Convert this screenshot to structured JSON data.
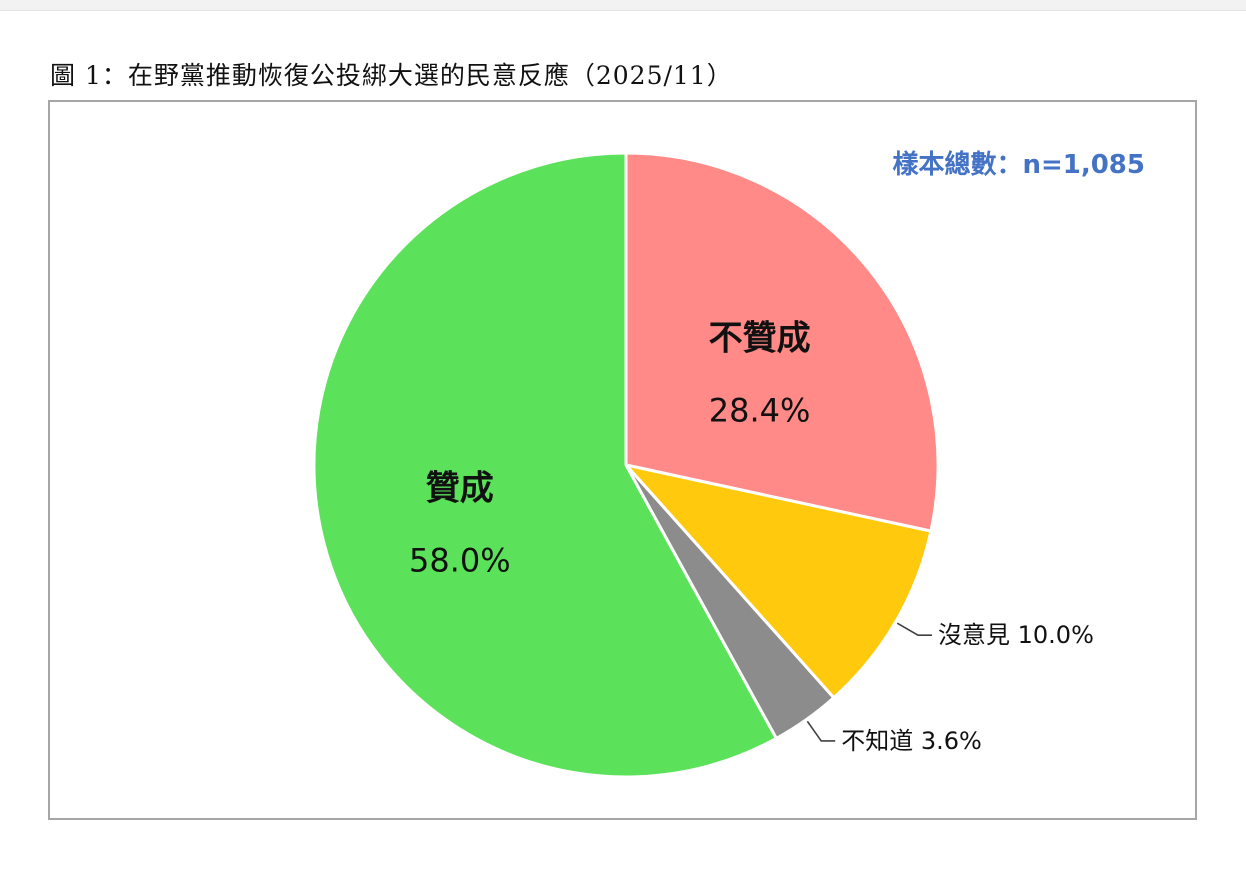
{
  "figure_title": "圖 1：在野黨推動恢復公投綁大選的民意反應（2025/11）",
  "sample_note": "樣本總數：n=1,085",
  "chart_data": {
    "type": "pie",
    "title": "",
    "slices": [
      {
        "label": "不贊成",
        "value": 28.4,
        "value_label": "28.4%",
        "color": "#ff8a87"
      },
      {
        "label": "沒意見",
        "value": 10.0,
        "value_label": "10.0%",
        "color": "#ffc90e"
      },
      {
        "label": "不知道",
        "value": 3.6,
        "value_label": "3.6%",
        "color": "#8c8c8c"
      },
      {
        "label": "贊成",
        "value": 58.0,
        "value_label": "58.0%",
        "color": "#5ce15a"
      }
    ],
    "start_angle": "12 o'clock",
    "direction": "clockwise"
  }
}
